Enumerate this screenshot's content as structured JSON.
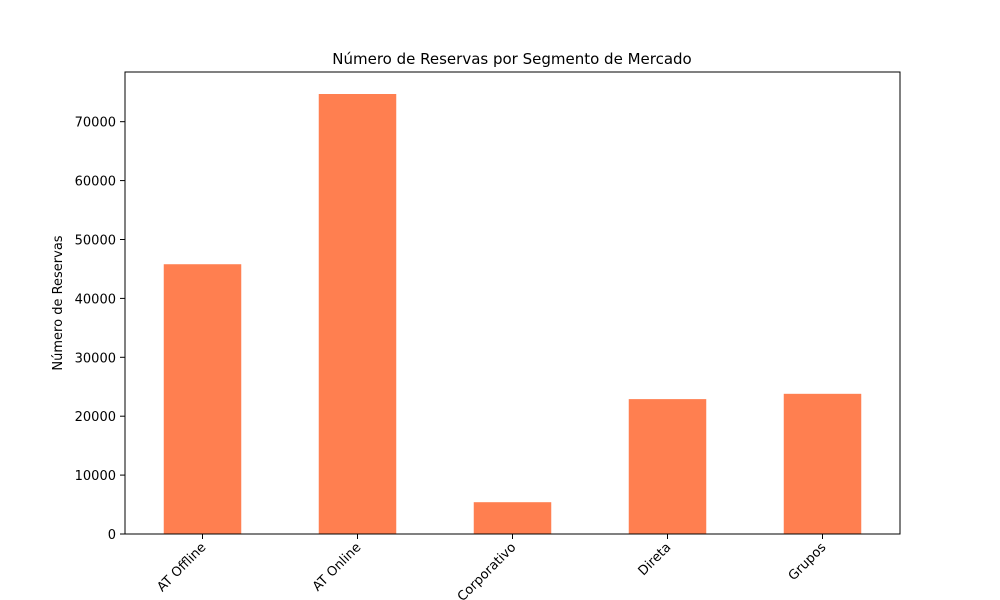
{
  "chart_data": {
    "type": "bar",
    "title": "Número de Reservas por Segmento de Mercado",
    "xlabel": "",
    "ylabel": "Número de Reservas",
    "categories": [
      "AT Offline",
      "AT Online",
      "Corporativo",
      "Direta",
      "Grupos"
    ],
    "values": [
      45800,
      74700,
      5400,
      22900,
      23800
    ],
    "ylim": [
      0,
      78435
    ],
    "yticks": [
      0,
      10000,
      20000,
      30000,
      40000,
      50000,
      60000,
      70000
    ],
    "ytick_labels": [
      "0",
      "10000",
      "20000",
      "30000",
      "40000",
      "50000",
      "60000",
      "70000"
    ],
    "x_tick_rotation_deg": 45,
    "grid": false,
    "bar_color": "#ff7f50"
  }
}
